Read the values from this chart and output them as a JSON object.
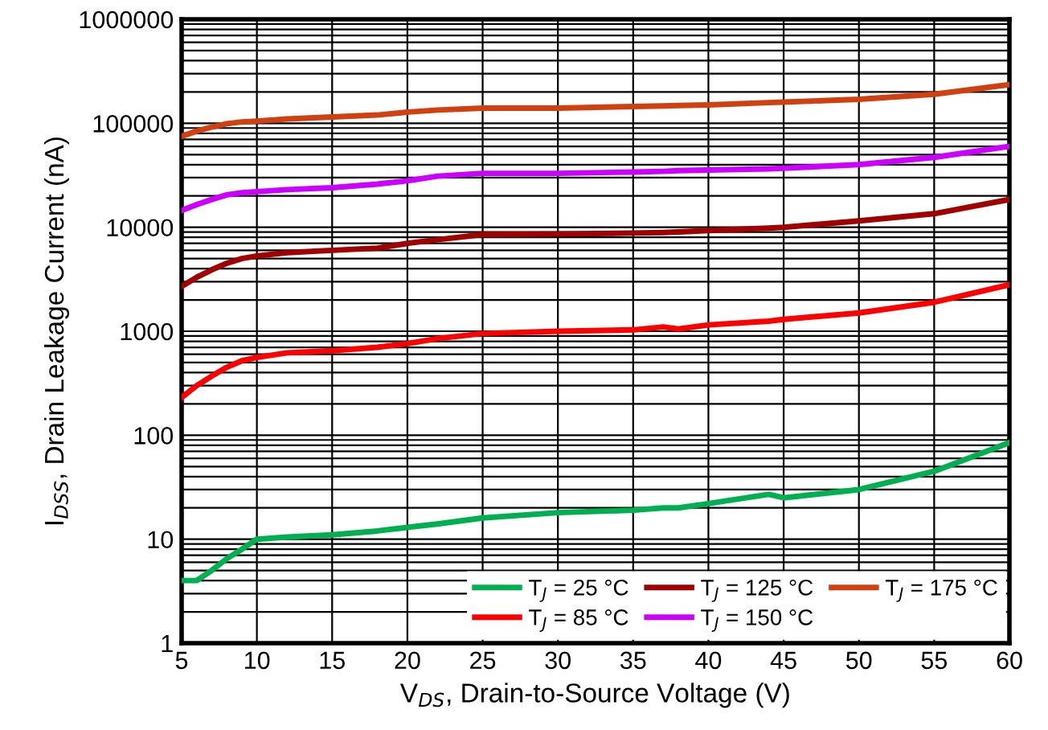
{
  "chart_data": {
    "type": "line",
    "xlabel": "V$_{DS}$, Drain-to-Source Voltage (V)",
    "ylabel": "I$_{DSS}$, Drain Leakage Current (nA)",
    "x": [
      5,
      6,
      7,
      8,
      9,
      10,
      12,
      15,
      18,
      20,
      22,
      25,
      30,
      35,
      37,
      38,
      40,
      44,
      45,
      50,
      55,
      60
    ],
    "series": [
      {
        "name": "T$_{J}$ = 25 °C",
        "color": "#00b050",
        "values": [
          4,
          4,
          5,
          6.5,
          8,
          10,
          10.5,
          11,
          12,
          13,
          14,
          16,
          18,
          19,
          20,
          20,
          22,
          27,
          25,
          30,
          45,
          85
        ]
      },
      {
        "name": "T$_{J}$ = 85 °C",
        "color": "#ff0000",
        "values": [
          230,
          300,
          370,
          450,
          520,
          560,
          620,
          650,
          700,
          760,
          850,
          950,
          1000,
          1030,
          1100,
          1050,
          1150,
          1250,
          1300,
          1500,
          1900,
          2800
        ]
      },
      {
        "name": "T$_{J}$ = 125 °C",
        "color": "#a00000",
        "values": [
          2700,
          3300,
          3900,
          4500,
          5000,
          5300,
          5700,
          6000,
          6300,
          7000,
          7600,
          8500,
          8600,
          8800,
          8900,
          9000,
          9300,
          9800,
          10000,
          11500,
          13500,
          18500
        ]
      },
      {
        "name": "T$_{J}$ = 150 °C",
        "color": "#cc00ff",
        "values": [
          14500,
          16500,
          18500,
          20500,
          21500,
          22000,
          23000,
          24000,
          26000,
          28000,
          31000,
          33000,
          33000,
          34000,
          34500,
          35000,
          35500,
          36500,
          37000,
          40000,
          47000,
          60000
        ]
      },
      {
        "name": "T$_{J}$ = 175 °C",
        "color": "#d04010",
        "values": [
          75000,
          84000,
          92000,
          99000,
          103000,
          105000,
          110000,
          115000,
          120000,
          128000,
          134000,
          140000,
          140000,
          145000,
          147000,
          148000,
          150000,
          158000,
          160000,
          170000,
          190000,
          235000
        ]
      }
    ],
    "xlim": [
      5,
      60
    ],
    "xticks": [
      5,
      10,
      15,
      20,
      25,
      30,
      35,
      40,
      45,
      50,
      55,
      60
    ],
    "ylim": [
      1,
      1000000
    ],
    "yticks": [
      1,
      10,
      100,
      1000,
      10000,
      100000,
      1000000
    ],
    "log": "y",
    "grid": true,
    "legend": "bottom right",
    "marker": "none",
    "line_style": "solid"
  }
}
